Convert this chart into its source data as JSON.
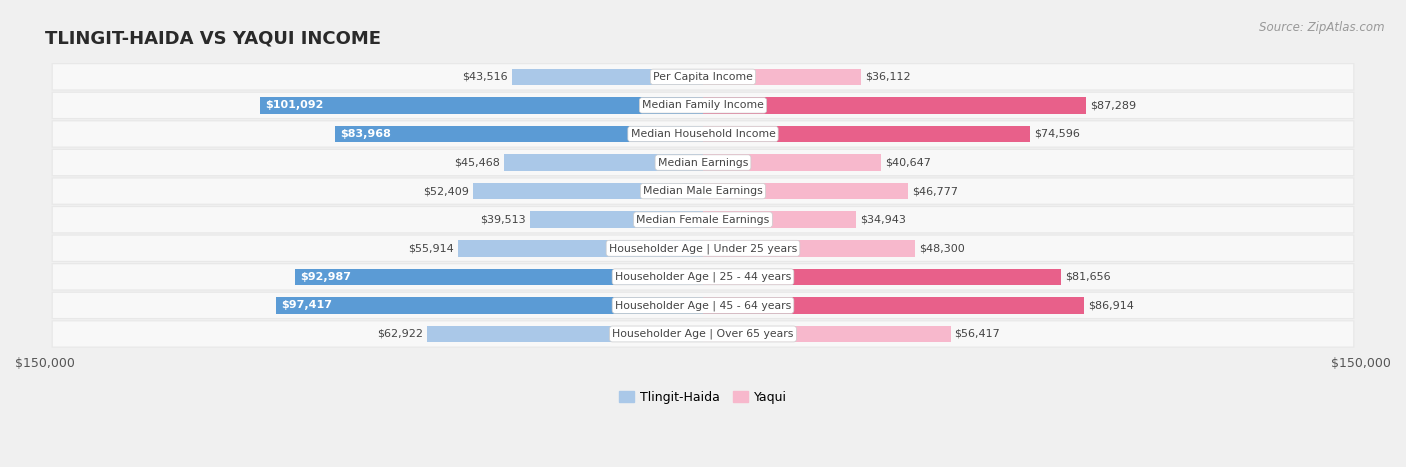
{
  "title": "TLINGIT-HAIDA VS YAQUI INCOME",
  "source": "Source: ZipAtlas.com",
  "categories": [
    "Per Capita Income",
    "Median Family Income",
    "Median Household Income",
    "Median Earnings",
    "Median Male Earnings",
    "Median Female Earnings",
    "Householder Age | Under 25 years",
    "Householder Age | 25 - 44 years",
    "Householder Age | 45 - 64 years",
    "Householder Age | Over 65 years"
  ],
  "tlingit_values": [
    43516,
    101092,
    83968,
    45468,
    52409,
    39513,
    55914,
    92987,
    97417,
    62922
  ],
  "yaqui_values": [
    36112,
    87289,
    74596,
    40647,
    46777,
    34943,
    48300,
    81656,
    86914,
    56417
  ],
  "tlingit_labels": [
    "$43,516",
    "$101,092",
    "$83,968",
    "$45,468",
    "$52,409",
    "$39,513",
    "$55,914",
    "$92,987",
    "$97,417",
    "$62,922"
  ],
  "yaqui_labels": [
    "$36,112",
    "$87,289",
    "$74,596",
    "$40,647",
    "$46,777",
    "$34,943",
    "$48,300",
    "$81,656",
    "$86,914",
    "$56,417"
  ],
  "tlingit_light_color": "#aac8e8",
  "tlingit_dark_color": "#5b9bd5",
  "yaqui_light_color": "#f7b8cc",
  "yaqui_dark_color": "#e8608a",
  "large_threshold": 65000,
  "max_value": 150000,
  "bg_color": "#f0f0f0",
  "row_light_color": "#f8f8f8",
  "row_dark_color": "#e8e8e8",
  "label_dark_color": "#444444",
  "label_white_color": "#ffffff",
  "title_color": "#2a2a2a",
  "source_color": "#999999",
  "legend_tlingit": "Tlingit-Haida",
  "legend_yaqui": "Yaqui",
  "axis_label_color": "#555555"
}
